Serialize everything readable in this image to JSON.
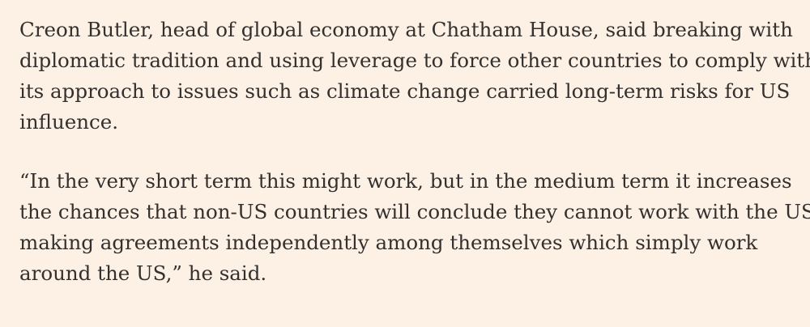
{
  "article": {
    "paragraphs": [
      {
        "lines": [
          "Creon Butler, head of global economy at Chatham House, said breaking with",
          "diplomatic tradition and using leverage to force other countries to comply with",
          "its approach to issues such as climate change carried long-term risks for US",
          "influence."
        ]
      },
      {
        "lines": [
          "“In the very short term this might work, but in the medium term it increases",
          "the chances that non-US countries will conclude they cannot work with the US,",
          "making agreements independently among themselves which simply work",
          "around the US,” he said."
        ]
      }
    ]
  }
}
